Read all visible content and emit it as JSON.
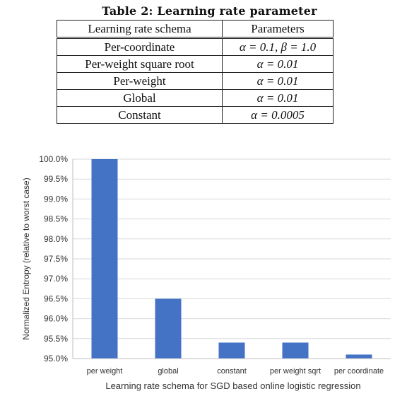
{
  "table": {
    "caption": "Table 2: Learning rate parameter",
    "headers": [
      "Learning rate schema",
      "Parameters"
    ],
    "rows": [
      {
        "schema": "Per-coordinate",
        "params": "α = 0.1, β = 1.0"
      },
      {
        "schema": "Per-weight square root",
        "params": "α = 0.01"
      },
      {
        "schema": "Per-weight",
        "params": "α = 0.01"
      },
      {
        "schema": "Global",
        "params": "α = 0.01"
      },
      {
        "schema": "Constant",
        "params": "α = 0.0005"
      }
    ]
  },
  "colors": {
    "bar": "#4472c4",
    "grid": "#d9d9d9",
    "axis": "#bfbfbf"
  },
  "chart_data": {
    "type": "bar",
    "categories": [
      "per weight",
      "global",
      "constant",
      "per weight sqrt",
      "per coordinate"
    ],
    "values": [
      100.0,
      96.5,
      95.4,
      95.4,
      95.1
    ],
    "xlabel": "Learning rate schema for SGD based online logistic regression",
    "ylabel": "Normalized Entropy (relative to worst case)",
    "ylim": [
      95.0,
      100.0
    ],
    "yticks": [
      95.0,
      95.5,
      96.0,
      96.5,
      97.0,
      97.5,
      98.0,
      98.5,
      99.0,
      99.5,
      100.0
    ],
    "ytick_labels": [
      "95.0%",
      "95.5%",
      "96.0%",
      "96.5%",
      "97.0%",
      "97.5%",
      "98.0%",
      "98.5%",
      "99.0%",
      "99.5%",
      "100.0%"
    ],
    "grid": true,
    "legend": "none"
  }
}
